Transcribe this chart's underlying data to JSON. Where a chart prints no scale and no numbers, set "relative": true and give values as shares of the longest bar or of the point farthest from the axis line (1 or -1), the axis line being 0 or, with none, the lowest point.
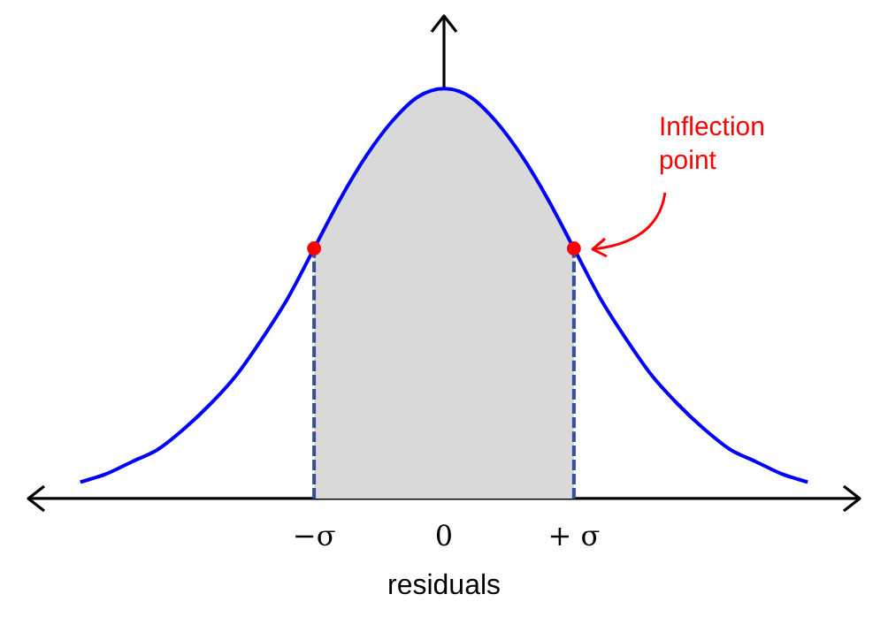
{
  "chart_data": {
    "type": "line",
    "relative": true,
    "xlabel": "residuals",
    "categories": [
      null,
      null,
      null,
      null,
      null,
      null,
      null,
      null,
      null,
      null,
      null,
      "−σ",
      null,
      null,
      null,
      null,
      "0",
      null,
      null,
      null,
      null,
      "+ σ",
      null,
      null,
      null,
      null,
      null,
      null,
      null,
      null,
      null,
      null,
      null
    ],
    "series": [
      {
        "type": "area",
        "color": "#d9d9d9",
        "values": [
          null,
          null,
          null,
          null,
          null,
          null,
          null,
          null,
          null,
          null,
          null,
          0.61,
          0.73,
          0.835,
          0.92,
          0.98,
          1,
          0.98,
          0.92,
          0.835,
          0.73,
          0.61,
          null,
          null,
          null,
          null,
          null,
          null,
          null,
          null,
          null,
          null,
          null
        ]
      },
      {
        "color": "#0000ff",
        "marker": "none",
        "values": [
          null,
          null,
          0.04,
          0.06,
          0.09,
          0.12,
          0.17,
          0.23,
          0.3,
          0.39,
          0.49,
          0.61,
          0.73,
          0.835,
          0.92,
          0.98,
          1,
          0.98,
          0.92,
          0.835,
          0.73,
          0.61,
          0.49,
          0.39,
          0.3,
          0.23,
          0.17,
          0.12,
          0.09,
          0.06,
          0.04,
          null,
          null
        ]
      },
      {
        "type": "line",
        "color": "#2f4f9f",
        "marker": "none",
        "line_style": "dashed",
        "x": [
          "−σ",
          "−σ"
        ],
        "values": [
          0,
          0.61
        ]
      },
      {
        "type": "line",
        "color": "#2f4f9f",
        "marker": "none",
        "line_style": "dashed",
        "x": [
          "+ σ",
          "+ σ"
        ],
        "values": [
          0,
          0.61
        ]
      },
      {
        "type": "scatter",
        "color": "#ff0000",
        "marker": "circle",
        "x": [
          "−σ",
          "+ σ"
        ],
        "values": [
          0.61,
          0.61
        ]
      }
    ],
    "annotations": [
      "Inflection point"
    ],
    "legend": false
  }
}
